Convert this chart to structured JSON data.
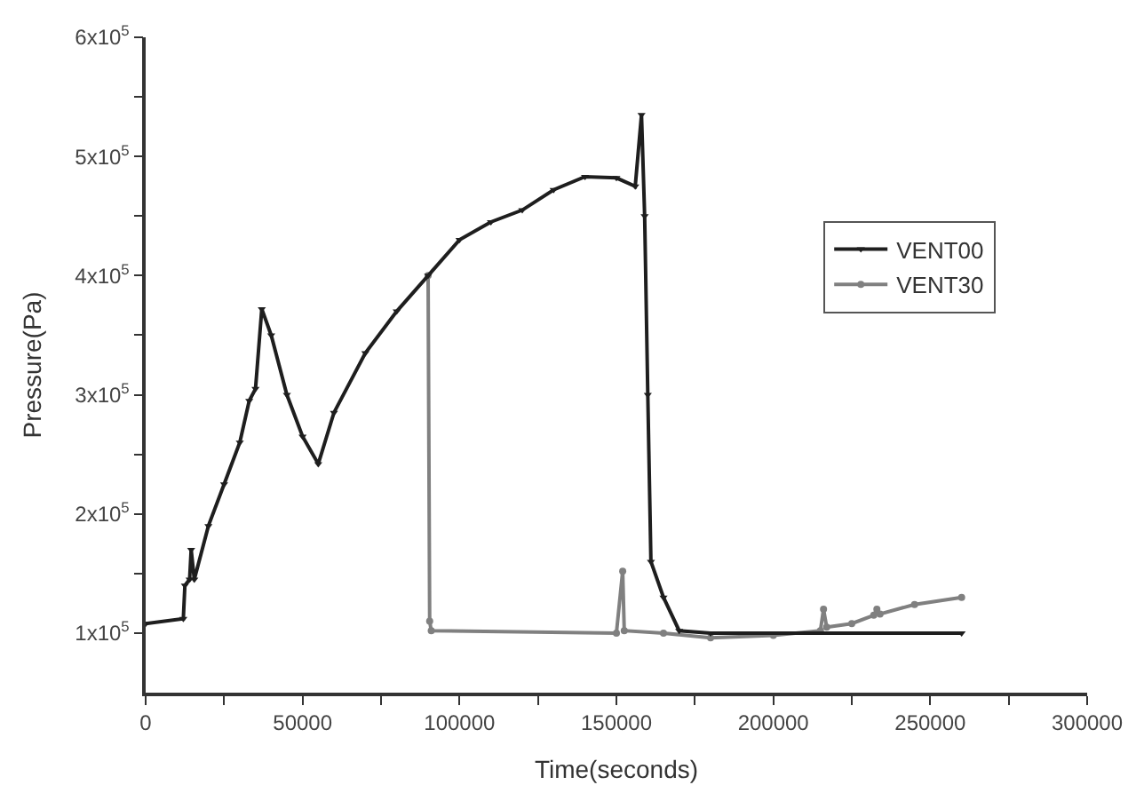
{
  "chart_data": {
    "type": "line",
    "xlabel": "Time(seconds)",
    "ylabel": "Pressure(Pa)",
    "xlim": [
      0,
      300000
    ],
    "ylim": [
      50000,
      600000
    ],
    "xticks": [
      0,
      {
        "value": 25000,
        "label": null
      },
      50000,
      {
        "value": 75000,
        "label": null
      },
      100000,
      {
        "value": 125000,
        "label": null
      },
      150000,
      {
        "value": 175000,
        "label": null
      },
      200000,
      {
        "value": 225000,
        "label": null
      },
      250000,
      {
        "value": 275000,
        "label": null
      },
      300000
    ],
    "yticks": [
      {
        "value": 100000,
        "label": "1x10$^{5}$"
      },
      {
        "value": 150000,
        "label": null
      },
      {
        "value": 200000,
        "label": "2x10$^{5}$"
      },
      {
        "value": 250000,
        "label": null
      },
      {
        "value": 300000,
        "label": "3x10$^{5}$"
      },
      {
        "value": 350000,
        "label": null
      },
      {
        "value": 400000,
        "label": "4x10$^{5}$"
      },
      {
        "value": 450000,
        "label": null
      },
      {
        "value": 500000,
        "label": "5x10$^{5}$"
      },
      {
        "value": 550000,
        "label": null
      },
      {
        "value": 600000,
        "label": "6x10$^{5}$"
      }
    ],
    "legend": "right",
    "line_style": "solid",
    "series": [
      {
        "name": "VENT30",
        "color": "#808080",
        "marker": "circle",
        "x": [
          90000,
          90500,
          91000,
          150000,
          152000,
          152500,
          165000,
          180000,
          200000,
          215000,
          216000,
          217000,
          225000,
          232000,
          233000,
          234000,
          245000,
          260000
        ],
        "values": [
          400000,
          110000,
          102000,
          100000,
          152000,
          102000,
          100000,
          96000,
          98000,
          102000,
          120000,
          105000,
          108000,
          115000,
          120000,
          116000,
          124000,
          130000
        ]
      },
      {
        "name": "VENT00",
        "color": "#1e1e1e",
        "marker": "triangle",
        "x": [
          0,
          12000,
          12500,
          14000,
          14500,
          15500,
          20000,
          25000,
          30000,
          33000,
          35000,
          37000,
          40000,
          45000,
          50000,
          55000,
          60000,
          70000,
          80000,
          90000,
          100000,
          110000,
          120000,
          130000,
          140000,
          150000,
          156000,
          158000,
          159000,
          160000,
          161000,
          165000,
          170000,
          180000,
          260000
        ],
        "values": [
          108000,
          112000,
          140000,
          145000,
          170000,
          145000,
          190000,
          225000,
          260000,
          295000,
          305000,
          372000,
          350000,
          300000,
          265000,
          242000,
          285000,
          335000,
          370000,
          400000,
          430000,
          445000,
          455000,
          472000,
          483000,
          482000,
          475000,
          535000,
          450000,
          300000,
          160000,
          130000,
          102000,
          100000,
          100000
        ]
      }
    ]
  }
}
